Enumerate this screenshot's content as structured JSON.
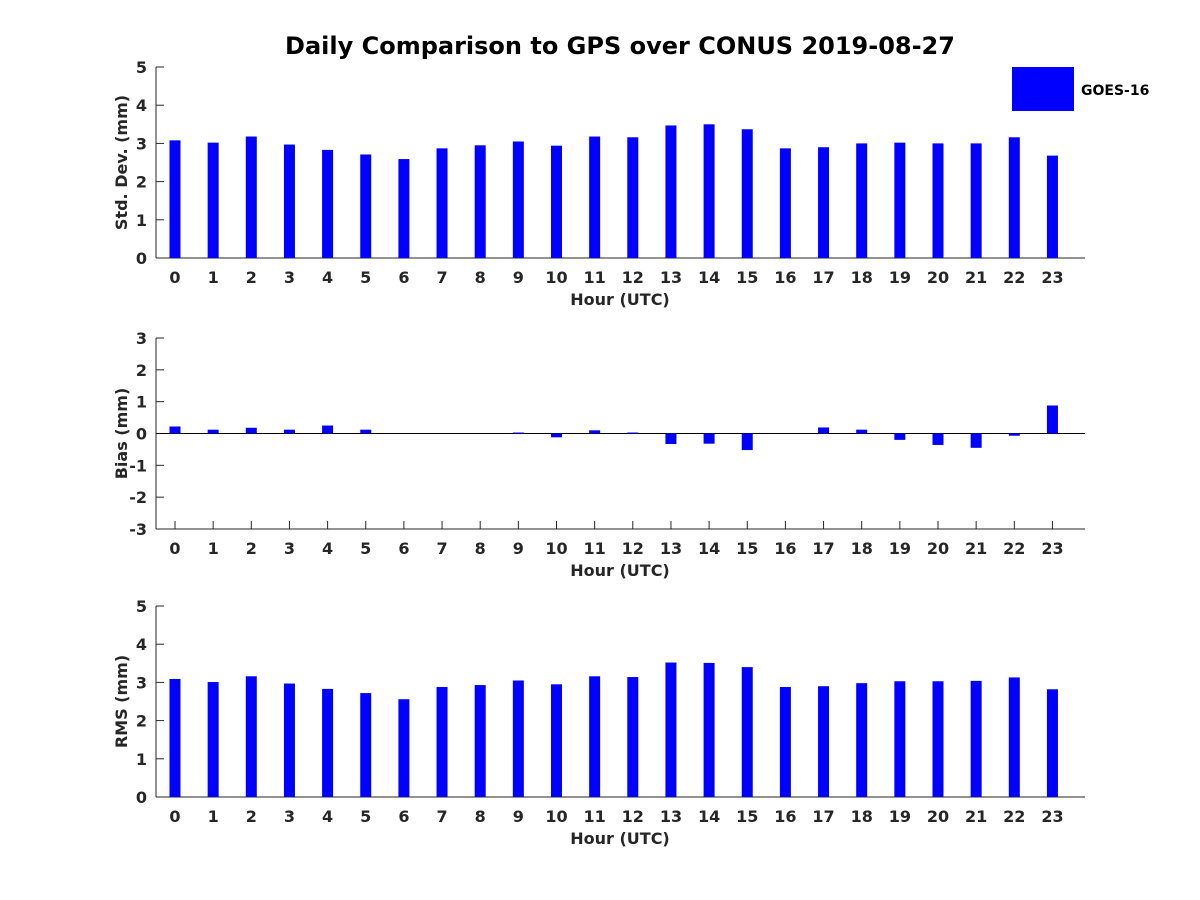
{
  "title": "Daily Comparison to GPS over CONUS 2019-08-27",
  "legend": {
    "label": "GOES-16",
    "color": "#0000ff",
    "location": "top-right"
  },
  "chart_data": [
    {
      "type": "bar",
      "ylabel": "Std. Dev. (mm)",
      "xlabel": "Hour (UTC)",
      "ylim": [
        0,
        5
      ],
      "yticks": [
        0,
        1,
        2,
        3,
        4,
        5
      ],
      "categories": [
        "0",
        "1",
        "2",
        "3",
        "4",
        "5",
        "6",
        "7",
        "8",
        "9",
        "10",
        "11",
        "12",
        "13",
        "14",
        "15",
        "16",
        "17",
        "18",
        "19",
        "20",
        "21",
        "22",
        "23"
      ],
      "series": [
        {
          "name": "GOES-16",
          "color": "#0000ff",
          "values": [
            3.08,
            3.02,
            3.18,
            2.97,
            2.83,
            2.71,
            2.59,
            2.87,
            2.95,
            3.05,
            2.94,
            3.18,
            3.16,
            3.47,
            3.5,
            3.37,
            2.87,
            2.9,
            3.0,
            3.02,
            3.0,
            3.0,
            3.16,
            2.68
          ]
        }
      ]
    },
    {
      "type": "bar",
      "ylabel": "Bias (mm)",
      "xlabel": "Hour (UTC)",
      "ylim": [
        -3,
        3
      ],
      "yticks": [
        -3,
        -2,
        -1,
        0,
        1,
        2,
        3
      ],
      "categories": [
        "0",
        "1",
        "2",
        "3",
        "4",
        "5",
        "6",
        "7",
        "8",
        "9",
        "10",
        "11",
        "12",
        "13",
        "14",
        "15",
        "16",
        "17",
        "18",
        "19",
        "20",
        "21",
        "22",
        "23"
      ],
      "series": [
        {
          "name": "GOES-16",
          "color": "#0000ff",
          "values": [
            0.22,
            0.12,
            0.18,
            0.12,
            0.25,
            0.12,
            0.0,
            0.0,
            0.0,
            0.03,
            -0.12,
            0.1,
            0.03,
            -0.33,
            -0.32,
            -0.52,
            0.0,
            0.19,
            0.12,
            -0.2,
            -0.36,
            -0.45,
            -0.07,
            0.88
          ]
        }
      ]
    },
    {
      "type": "bar",
      "ylabel": "RMS (mm)",
      "xlabel": "Hour (UTC)",
      "ylim": [
        0,
        5
      ],
      "yticks": [
        0,
        1,
        2,
        3,
        4,
        5
      ],
      "categories": [
        "0",
        "1",
        "2",
        "3",
        "4",
        "5",
        "6",
        "7",
        "8",
        "9",
        "10",
        "11",
        "12",
        "13",
        "14",
        "15",
        "16",
        "17",
        "18",
        "19",
        "20",
        "21",
        "22",
        "23"
      ],
      "series": [
        {
          "name": "GOES-16",
          "color": "#0000ff",
          "values": [
            3.09,
            3.01,
            3.16,
            2.97,
            2.83,
            2.72,
            2.56,
            2.88,
            2.93,
            3.05,
            2.95,
            3.16,
            3.14,
            3.52,
            3.51,
            3.4,
            2.88,
            2.9,
            2.98,
            3.03,
            3.03,
            3.04,
            3.13,
            2.82
          ]
        }
      ]
    }
  ]
}
